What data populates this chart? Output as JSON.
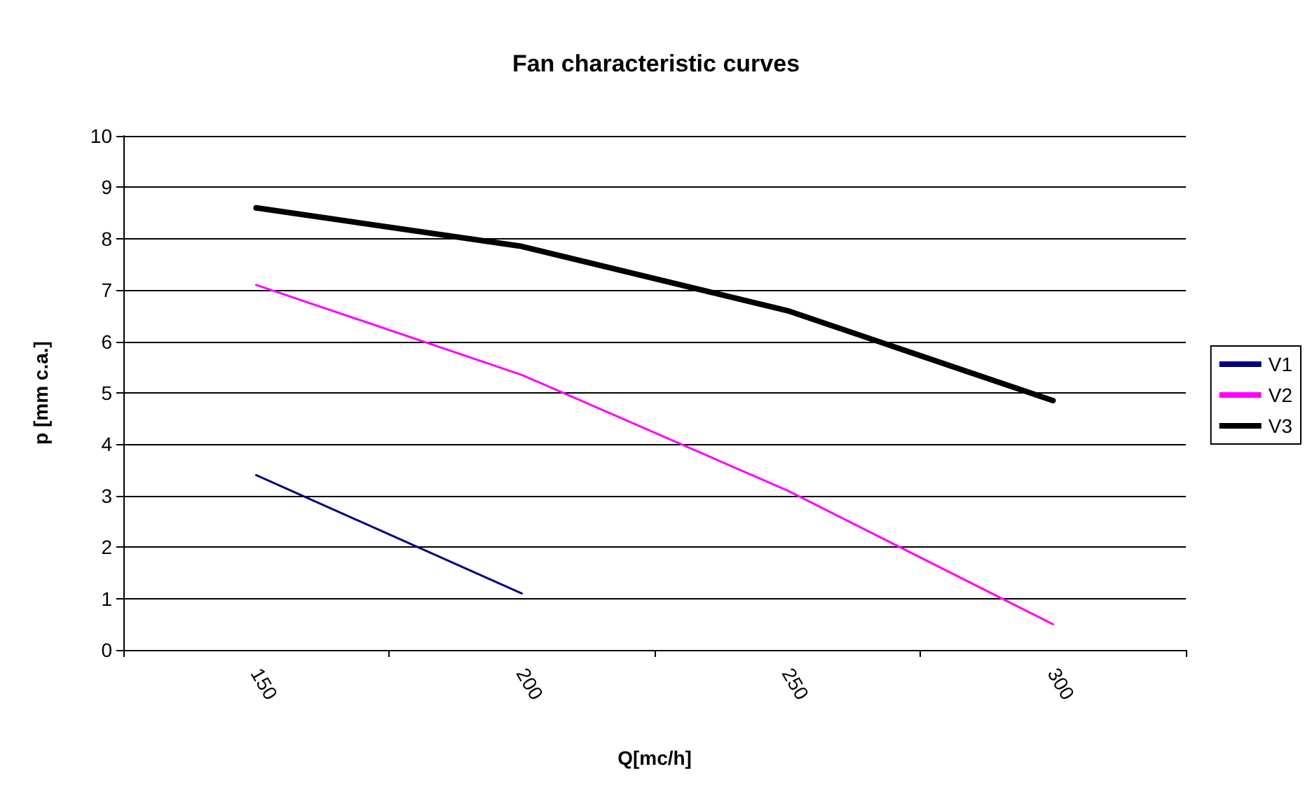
{
  "chart_data": {
    "type": "line",
    "title": "Fan characteristic curves",
    "xlabel": "Q[mc/h]",
    "ylabel": "p [mm c.a.]",
    "categories": [
      "150",
      "200",
      "250",
      "300"
    ],
    "series": [
      {
        "name": "V1",
        "color": "#000080",
        "values": [
          3.4,
          1.1,
          null,
          null
        ]
      },
      {
        "name": "V2",
        "color": "#ff00ff",
        "values": [
          7.1,
          5.35,
          3.1,
          0.5
        ]
      },
      {
        "name": "V3",
        "color": "#000000",
        "values": [
          8.6,
          7.85,
          6.6,
          4.85
        ]
      }
    ],
    "ylim": [
      0,
      10
    ],
    "yticks": [
      0,
      1,
      2,
      3,
      4,
      5,
      6,
      7,
      8,
      9,
      10
    ],
    "grid": "y",
    "legend": "right",
    "marker": "none",
    "line_style": "solid"
  }
}
